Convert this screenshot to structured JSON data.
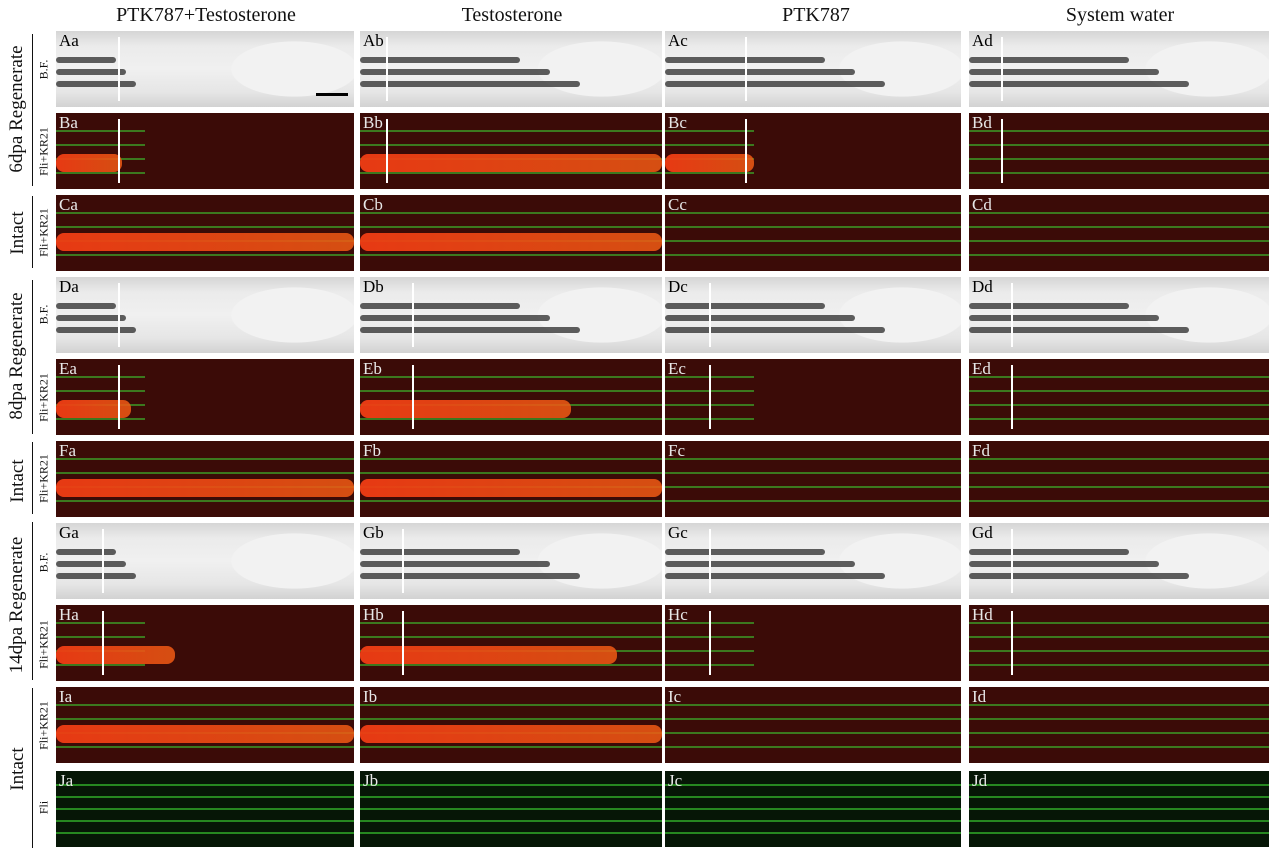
{
  "columns": [
    "PTK787+Testosterone",
    "Testosterone",
    "PTK787",
    "System water"
  ],
  "groups": {
    "g6": "6dpa Regenerate",
    "i6": "Intact",
    "g8": "8dpa Regenerate",
    "i8": "Intact",
    "g14": "14dpa Regenerate",
    "i14": "Intact"
  },
  "row_labels": {
    "A": "B.F.",
    "B": "Fli+KR21",
    "C": "Fli+KR21",
    "D": "B.F.",
    "E": "Fli+KR21",
    "F": "Fli+KR21",
    "G": "B.F.",
    "H": "Fli+KR21",
    "I": "Fli+KR21",
    "J": "Fli"
  },
  "panels": {
    "A": [
      "Aa",
      "Ab",
      "Ac",
      "Ad"
    ],
    "B": [
      "Ba",
      "Bb",
      "Bc",
      "Bd"
    ],
    "C": [
      "Ca",
      "Cb",
      "Cc",
      "Cd"
    ],
    "D": [
      "Da",
      "Db",
      "Dc",
      "Dd"
    ],
    "E": [
      "Ea",
      "Eb",
      "Ec",
      "Ed"
    ],
    "F": [
      "Fa",
      "Fb",
      "Fc",
      "Fd"
    ],
    "G": [
      "Ga",
      "Gb",
      "Gc",
      "Gd"
    ],
    "H": [
      "Ha",
      "Hb",
      "Hc",
      "Hd"
    ],
    "I": [
      "Ia",
      "Ib",
      "Ic",
      "Id"
    ],
    "J": [
      "Ja",
      "Jb",
      "Jc",
      "Jd"
    ]
  },
  "colors": {
    "brightfield": "#e8e8e8",
    "fluor_red_bg": "#1b0707",
    "fluor_green_bg": "#061606",
    "green_signal": "#3cd232",
    "red_signal": "#f03c14"
  }
}
